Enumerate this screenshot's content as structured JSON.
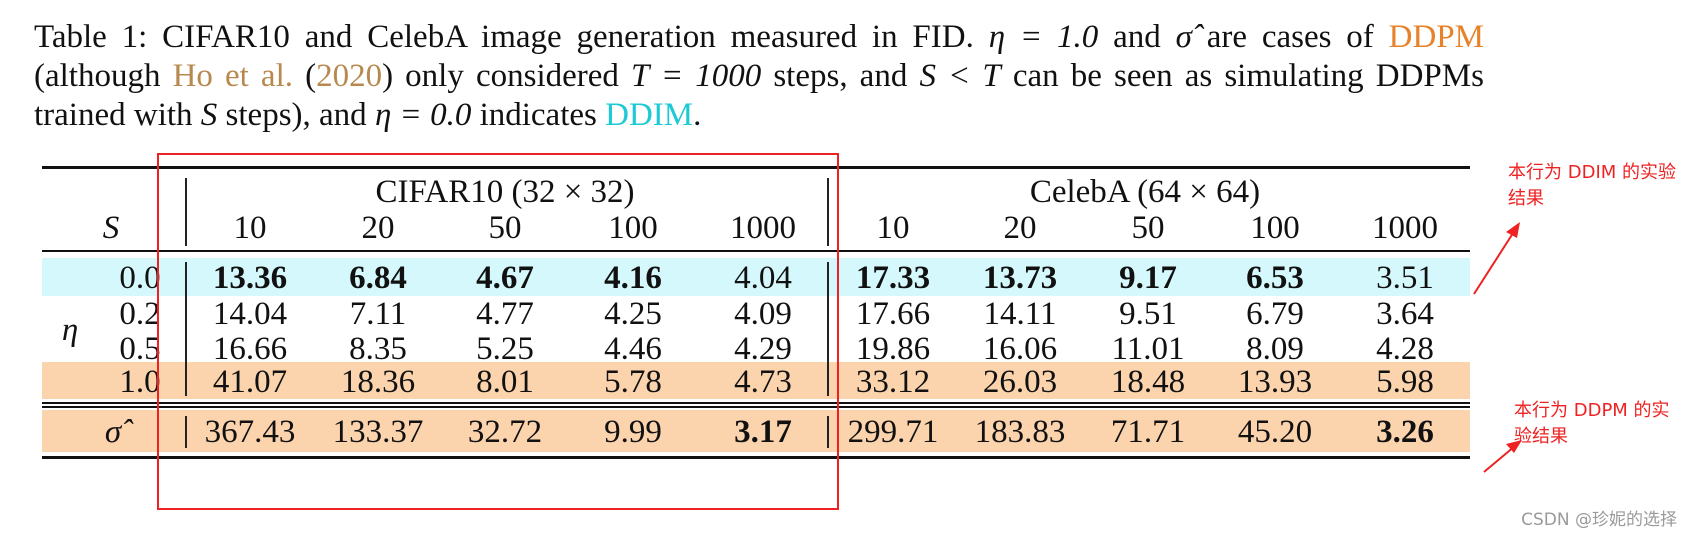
{
  "caption": {
    "part1": "Table 1:  CIFAR10 and CelebA image generation measured in FID. ",
    "eta_eq_1": "η = 1.0",
    "and1": " and ",
    "sigma_hat": "σ̂",
    "part2": " are cases of ",
    "ddpm_link": "DDPM",
    "part3": " (although ",
    "ho_link": "Ho et al.",
    "part4": " (",
    "year_link": "2020",
    "part5": ") only considered ",
    "t_eq": "T = 1000",
    "part6": " steps, and ",
    "s_lt_t": "S < T",
    "part7": " can be seen as simulating DDPMs trained with ",
    "s_var": "S",
    "part8": " steps), and ",
    "eta_eq_0": "η = 0.0",
    "part9": " indicates ",
    "ddim_link": "DDIM",
    "part10": "."
  },
  "table": {
    "col_s": "S",
    "row_eta": "η",
    "groups": [
      "CIFAR10 (32 × 32)",
      "CelebA (64 × 64)"
    ],
    "steps": [
      "10",
      "20",
      "50",
      "100",
      "1000"
    ],
    "rows": [
      {
        "label": "0.0",
        "cifar": [
          "13.36",
          "6.84",
          "4.67",
          "4.16",
          "4.04"
        ],
        "celeba": [
          "17.33",
          "13.73",
          "9.17",
          "6.53",
          "3.51"
        ]
      },
      {
        "label": "0.2",
        "cifar": [
          "14.04",
          "7.11",
          "4.77",
          "4.25",
          "4.09"
        ],
        "celeba": [
          "17.66",
          "14.11",
          "9.51",
          "6.79",
          "3.64"
        ]
      },
      {
        "label": "0.5",
        "cifar": [
          "16.66",
          "8.35",
          "5.25",
          "4.46",
          "4.29"
        ],
        "celeba": [
          "19.86",
          "16.06",
          "11.01",
          "8.09",
          "4.28"
        ]
      },
      {
        "label": "1.0",
        "cifar": [
          "41.07",
          "18.36",
          "8.01",
          "5.78",
          "4.73"
        ],
        "celeba": [
          "33.12",
          "26.03",
          "18.48",
          "13.93",
          "5.98"
        ]
      },
      {
        "label": "σ̂",
        "cifar": [
          "367.43",
          "133.37",
          "32.72",
          "9.99",
          "3.17"
        ],
        "celeba": [
          "299.71",
          "183.83",
          "71.71",
          "45.20",
          "3.26"
        ]
      }
    ]
  },
  "annotations": {
    "ddim_note": "本行为 DDIM 的实验结果",
    "ddpm_note": "本行为 DDPM 的实验结果",
    "watermark": "CSDN @珍妮的选择"
  },
  "colors": {
    "ddim_row": "#d4f8fb",
    "ddpm_row": "#fbd3ad",
    "annotation_red": "#ee2222",
    "ddpm_link": "#e8822a",
    "ddim_link": "#1ec9d6"
  }
}
